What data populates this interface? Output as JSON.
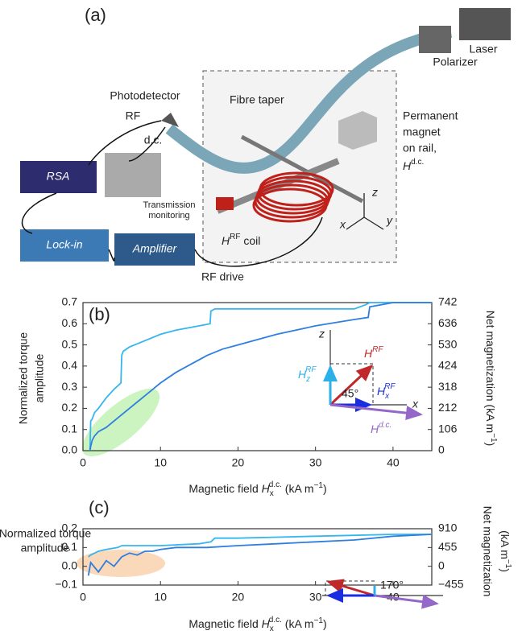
{
  "diagram": {
    "label": "(a)",
    "polarizer": "Polarizer",
    "laser": "Laser",
    "photodetector": "Photodetector",
    "rf": "RF",
    "dc": "d.c.",
    "fibre_taper": "Fibre taper",
    "magnet": [
      "Permanent",
      "magnet",
      "on rail,"
    ],
    "magnet_field": [
      "H",
      "d.c."
    ],
    "rsa": "RSA",
    "transmission": [
      "Transmission",
      "monitoring"
    ],
    "lockin": "Lock-in",
    "amplifier": "Amplifier",
    "coil": [
      "H",
      "RF",
      " coil"
    ],
    "rf_drive": "RF drive",
    "axes": [
      "z",
      "x",
      "y"
    ]
  },
  "chart_data": [
    {
      "type": "line",
      "panel_label": "(b)",
      "ylabel": [
        "Normalized torque",
        "amplitude"
      ],
      "y2label": [
        "Net magnetization (kA m",
        "−1",
        ")"
      ],
      "xlabel": [
        "Magnetic field ",
        "H",
        "x",
        "d.c.",
        " (kA m",
        "−1",
        ")"
      ],
      "xlim": [
        0,
        45
      ],
      "xticks": [
        0,
        10,
        20,
        30,
        40
      ],
      "ylim": [
        0,
        0.7
      ],
      "yticks": [
        {
          "value": 0,
          "label": "0.0"
        },
        0.1,
        0.2,
        0.3,
        0.4,
        0.5,
        0.6,
        0.7
      ],
      "y2lim": [
        0,
        742
      ],
      "y2ticks": [
        0,
        106,
        212,
        318,
        424,
        530,
        636,
        742
      ],
      "series": [
        {
          "color": "#35b6ee",
          "x": [
            45,
            40,
            37,
            36.5,
            35,
            30,
            25,
            20,
            17,
            16.5,
            16.4,
            15,
            12,
            10,
            8,
            6,
            5.2,
            5,
            4.9,
            4,
            3,
            2,
            1.5,
            1.2,
            1,
            0.9
          ],
          "values": [
            0.7,
            0.7,
            0.7,
            0.69,
            0.67,
            0.67,
            0.67,
            0.67,
            0.67,
            0.66,
            0.6,
            0.59,
            0.57,
            0.55,
            0.52,
            0.49,
            0.47,
            0.45,
            0.32,
            0.29,
            0.25,
            0.2,
            0.18,
            0.15,
            0.14,
            0
          ]
        },
        {
          "color": "#2e7fe0",
          "x": [
            0.9,
            1,
            1.2,
            1.5,
            2,
            3,
            4,
            5,
            6,
            7,
            8,
            9,
            10,
            12,
            14,
            16,
            18,
            20,
            25,
            30,
            35,
            36.8,
            37,
            40,
            45
          ],
          "values": [
            0,
            0.02,
            0.05,
            0.07,
            0.09,
            0.11,
            0.14,
            0.17,
            0.2,
            0.23,
            0.26,
            0.29,
            0.32,
            0.37,
            0.41,
            0.45,
            0.48,
            0.5,
            0.55,
            0.59,
            0.62,
            0.63,
            0.68,
            0.7,
            0.7
          ]
        }
      ],
      "annotations": [
        "z",
        "x",
        [
          "H",
          "RF"
        ],
        [
          "H",
          "z",
          "RF"
        ],
        [
          "H",
          "x",
          "RF"
        ],
        "45°",
        [
          "H",
          "d.c."
        ]
      ]
    },
    {
      "type": "line",
      "panel_label": "(c)",
      "ylabel": [
        "Normalized torque",
        "amplitude"
      ],
      "y2label": [
        "Net magnetization",
        "(kA m",
        "−1",
        ")"
      ],
      "xlabel": [
        "Magnetic field ",
        "H",
        "x",
        "d.c.",
        " (kA m",
        "−1",
        ")"
      ],
      "xlim": [
        0,
        45
      ],
      "xticks": [
        0,
        10,
        20,
        30,
        40
      ],
      "ylim": [
        -0.1,
        0.2
      ],
      "yticks": [
        {
          "value": -0.1,
          "label": "−0.1"
        },
        {
          "value": 0,
          "label": "0.0"
        },
        0.1,
        0.2
      ],
      "y2lim": [
        -455,
        910
      ],
      "y2ticks": [
        {
          "value": -455,
          "label": "−455"
        },
        0,
        455,
        910
      ],
      "series": [
        {
          "color": "#35b6ee",
          "x": [
            45,
            40,
            35,
            30,
            25,
            20,
            17,
            16.5,
            15,
            10,
            6,
            5,
            4.5,
            3,
            2,
            1,
            0.7
          ],
          "values": [
            0.17,
            0.17,
            0.165,
            0.16,
            0.155,
            0.15,
            0.15,
            0.13,
            0.12,
            0.11,
            0.11,
            0.11,
            0.1,
            0.09,
            0.08,
            0.06,
            0.05
          ]
        },
        {
          "color": "#2e7fe0",
          "x": [
            0.7,
            1,
            2,
            3,
            4,
            5,
            6,
            7,
            8,
            9,
            10,
            12,
            14,
            16,
            20,
            25,
            30,
            35,
            40,
            45
          ],
          "values": [
            -0.05,
            0.02,
            -0.03,
            0.03,
            0,
            0.05,
            0.07,
            0.06,
            0.08,
            0.08,
            0.09,
            0.1,
            0.1,
            0.1,
            0.11,
            0.12,
            0.13,
            0.14,
            0.16,
            0.17
          ]
        }
      ],
      "annotations": [
        "170°"
      ]
    }
  ]
}
